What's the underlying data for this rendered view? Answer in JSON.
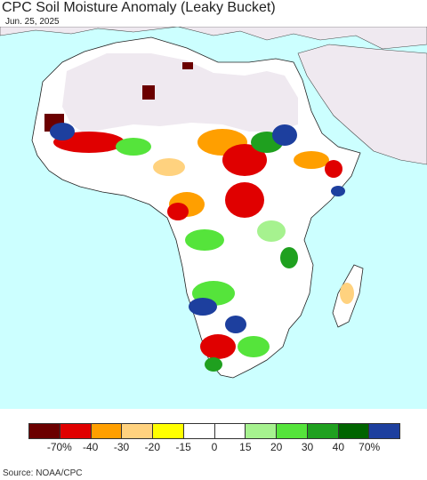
{
  "title": "CPC Soil Moisture Anomaly (Leaky Bucket)",
  "date": "Jun. 25, 2025",
  "source": "Source: NOAA/CPC",
  "legend": {
    "colors": [
      "#6b0000",
      "#e00000",
      "#ff9f00",
      "#ffd27f",
      "#ffff00",
      "#ffffff",
      "#ffffff",
      "#a6f28f",
      "#55e43b",
      "#1fa01f",
      "#006400",
      "#1d3f9e"
    ],
    "labels": [
      "-70%",
      "-40",
      "-30",
      "-20",
      "-15",
      "0",
      "15",
      "20",
      "30",
      "40",
      "70%"
    ]
  },
  "map": {
    "ocean_color": "#ccffff",
    "land_no_data_color": "#efe9f0",
    "land_color": "#ffffff"
  }
}
